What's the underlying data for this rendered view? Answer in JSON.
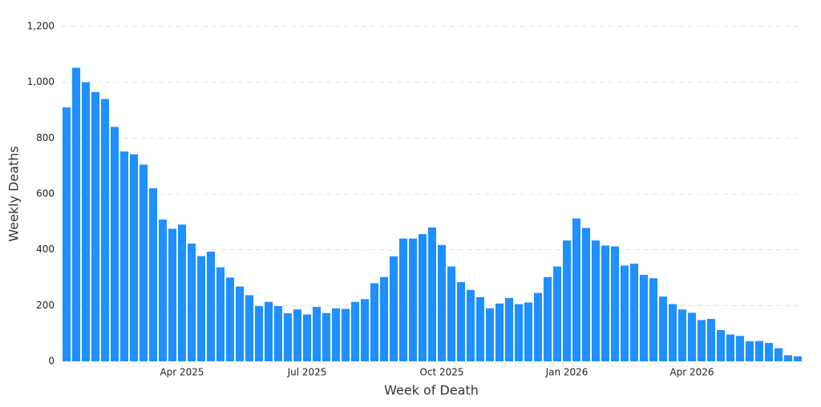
{
  "chart_data": {
    "type": "bar",
    "x_label": "Week of Death",
    "y_label": "Weekly Deaths",
    "categories": [
      null,
      null,
      null,
      null,
      null,
      null,
      null,
      null,
      null,
      null,
      null,
      null,
      "Apr 2025",
      null,
      null,
      null,
      null,
      null,
      null,
      null,
      null,
      null,
      null,
      null,
      null,
      "Jul 2025",
      null,
      null,
      null,
      null,
      null,
      null,
      null,
      null,
      null,
      null,
      null,
      null,
      null,
      "Oct 2025",
      null,
      null,
      null,
      null,
      null,
      null,
      null,
      null,
      null,
      null,
      null,
      null,
      "Jan 2026",
      null,
      null,
      null,
      null,
      null,
      null,
      null,
      null,
      null,
      null,
      null,
      null,
      "Apr 2026",
      null,
      null,
      null,
      null,
      null,
      null,
      null,
      null,
      null,
      null,
      null
    ],
    "values": [
      910,
      1052,
      1000,
      965,
      940,
      840,
      752,
      742,
      705,
      620,
      508,
      475,
      490,
      422,
      377,
      393,
      337,
      300,
      268,
      237,
      198,
      213,
      198,
      172,
      186,
      168,
      195,
      173,
      190,
      188,
      213,
      223,
      280,
      302,
      376,
      440,
      440,
      456,
      480,
      417,
      340,
      284,
      256,
      230,
      190,
      207,
      227,
      205,
      211,
      245,
      302,
      340,
      433,
      512,
      478,
      433,
      415,
      412,
      343,
      350,
      310,
      298,
      232,
      205,
      186,
      174,
      148,
      152,
      112,
      96,
      91,
      72,
      73,
      66,
      47,
      22,
      18
    ],
    "color": "#1e90ff",
    "ylim": [
      0,
      1200
    ],
    "yticks": [
      0,
      200,
      400,
      600,
      800,
      {
        "value": 1000,
        "label": "1,000"
      },
      {
        "value": 1200,
        "label": "1,200"
      }
    ],
    "grid": true
  }
}
